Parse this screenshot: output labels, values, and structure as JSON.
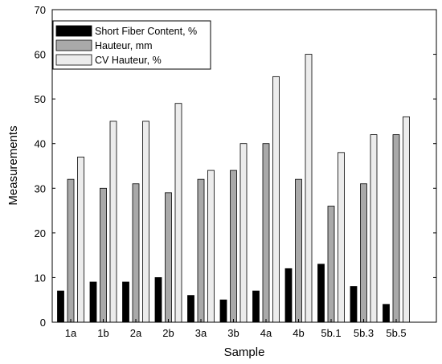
{
  "chart_data": {
    "type": "bar",
    "xlabel": "Sample",
    "ylabel": "Measurements",
    "ylim": [
      0,
      70
    ],
    "yticks": [
      0,
      10,
      20,
      30,
      40,
      50,
      60,
      70
    ],
    "grid": false,
    "legend_position": "top-left",
    "categories": [
      "1a",
      "1b",
      "2a",
      "2b",
      "3a",
      "3b",
      "4a",
      "4b",
      "5b.1",
      "5b.3",
      "5b.5"
    ],
    "series": [
      {
        "name": "Short Fiber Content, %",
        "color": "#000000",
        "values": [
          7,
          9,
          9,
          10,
          6,
          5,
          7,
          12,
          13,
          8,
          4
        ]
      },
      {
        "name": "Hauteur, mm",
        "color": "#a9a9a9",
        "values": [
          32,
          30,
          31,
          29,
          32,
          34,
          40,
          32,
          26,
          31,
          42
        ]
      },
      {
        "name": "CV Hauteur, %",
        "color": "#ececec",
        "values": [
          37,
          45,
          45,
          49,
          34,
          40,
          55,
          60,
          38,
          42,
          46
        ]
      }
    ]
  }
}
